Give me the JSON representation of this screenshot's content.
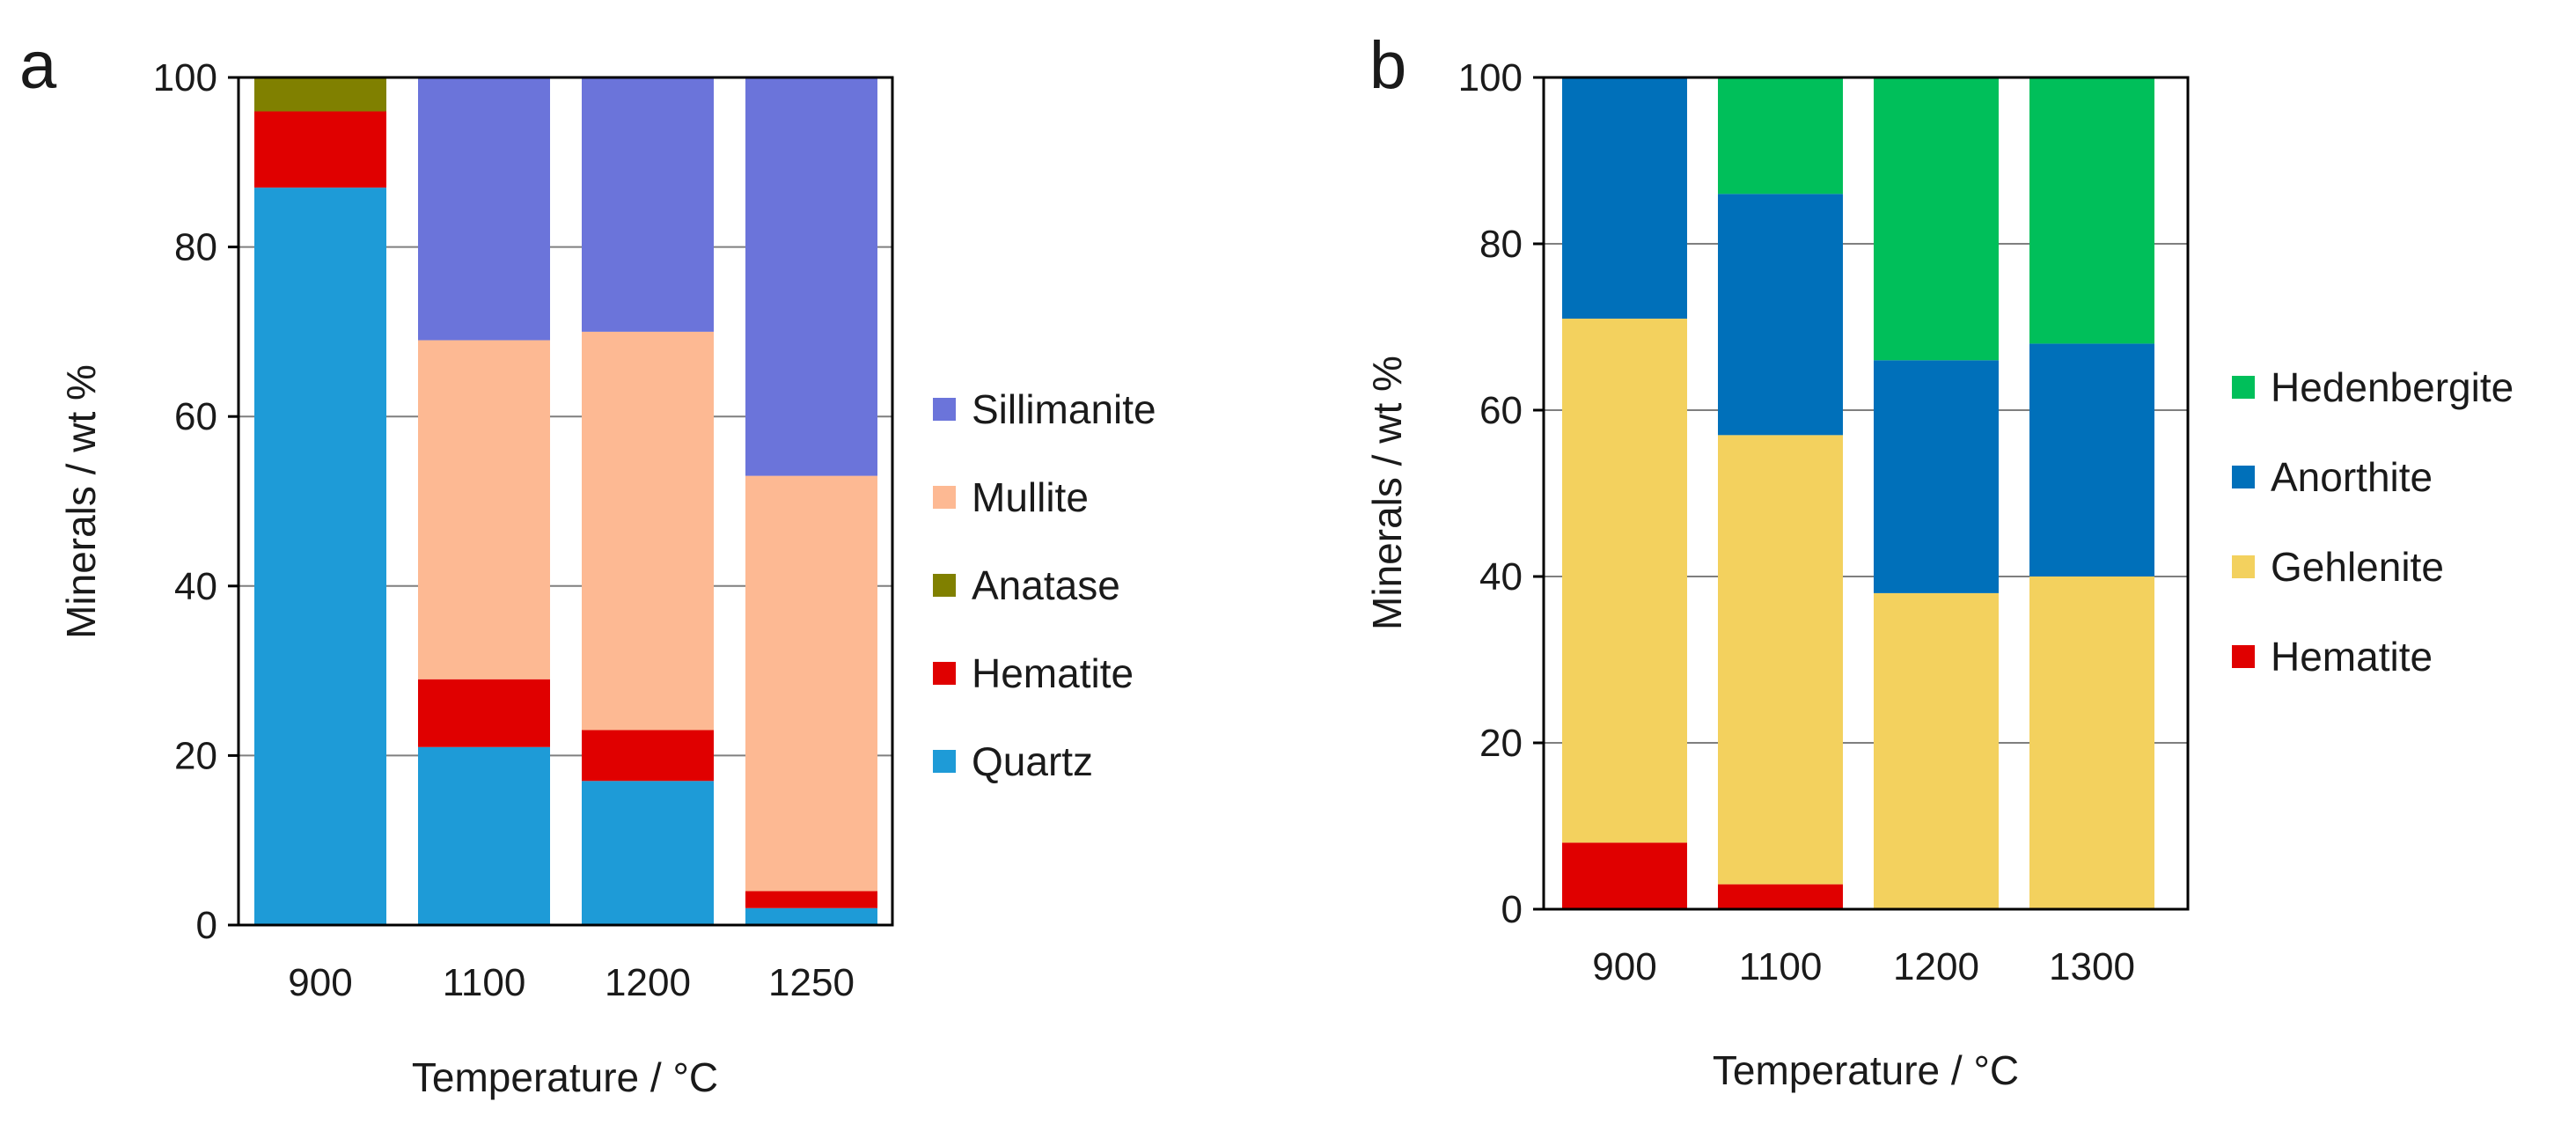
{
  "chart_data": [
    {
      "type": "bar",
      "stacked": true,
      "panel_label": "a",
      "title": "",
      "xlabel": "Temperature / °C",
      "ylabel": "Minerals / wt %",
      "ylim": [
        0,
        100
      ],
      "yticks": [
        "0",
        "20",
        "40",
        "60",
        "80",
        "100"
      ],
      "categories": [
        "900",
        "1100",
        "1200",
        "1250"
      ],
      "series": [
        {
          "name": "Quartz",
          "color": "#1E9BD7",
          "values": [
            87,
            21,
            17,
            2
          ]
        },
        {
          "name": "Hematite",
          "color": "#E00000",
          "values": [
            9,
            8,
            6,
            2
          ]
        },
        {
          "name": "Anatase",
          "color": "#808000",
          "values": [
            4,
            0,
            0,
            0
          ]
        },
        {
          "name": "Mullite",
          "color": "#FDB993",
          "values": [
            0,
            40,
            47,
            49
          ]
        },
        {
          "name": "Sillimanite",
          "color": "#6B74DA",
          "values": [
            0,
            31,
            30,
            47
          ]
        }
      ],
      "legend_order": [
        "Sillimanite",
        "Mullite",
        "Anatase",
        "Hematite",
        "Quartz"
      ],
      "legend": "right"
    },
    {
      "type": "bar",
      "stacked": true,
      "panel_label": "b",
      "title": "",
      "xlabel": "Temperature / °C",
      "ylabel": "Minerals / wt %",
      "ylim": [
        0,
        100
      ],
      "yticks": [
        "0",
        "20",
        "40",
        "60",
        "80",
        "100"
      ],
      "categories": [
        "900",
        "1100",
        "1200",
        "1300"
      ],
      "series": [
        {
          "name": "Hematite",
          "color": "#E00000",
          "values": [
            8,
            3,
            0,
            0
          ]
        },
        {
          "name": "Gehlenite",
          "color": "#F3D15E",
          "values": [
            63,
            54,
            38,
            40
          ]
        },
        {
          "name": "Anorthite",
          "color": "#0070BA",
          "values": [
            29,
            29,
            28,
            28
          ]
        },
        {
          "name": "Hedenbergite",
          "color": "#00BF5A",
          "values": [
            0,
            14,
            34,
            32
          ]
        }
      ],
      "legend_order": [
        "Hedenbergite",
        "Anorthite",
        "Gehlenite",
        "Hematite"
      ],
      "legend": "right"
    }
  ]
}
